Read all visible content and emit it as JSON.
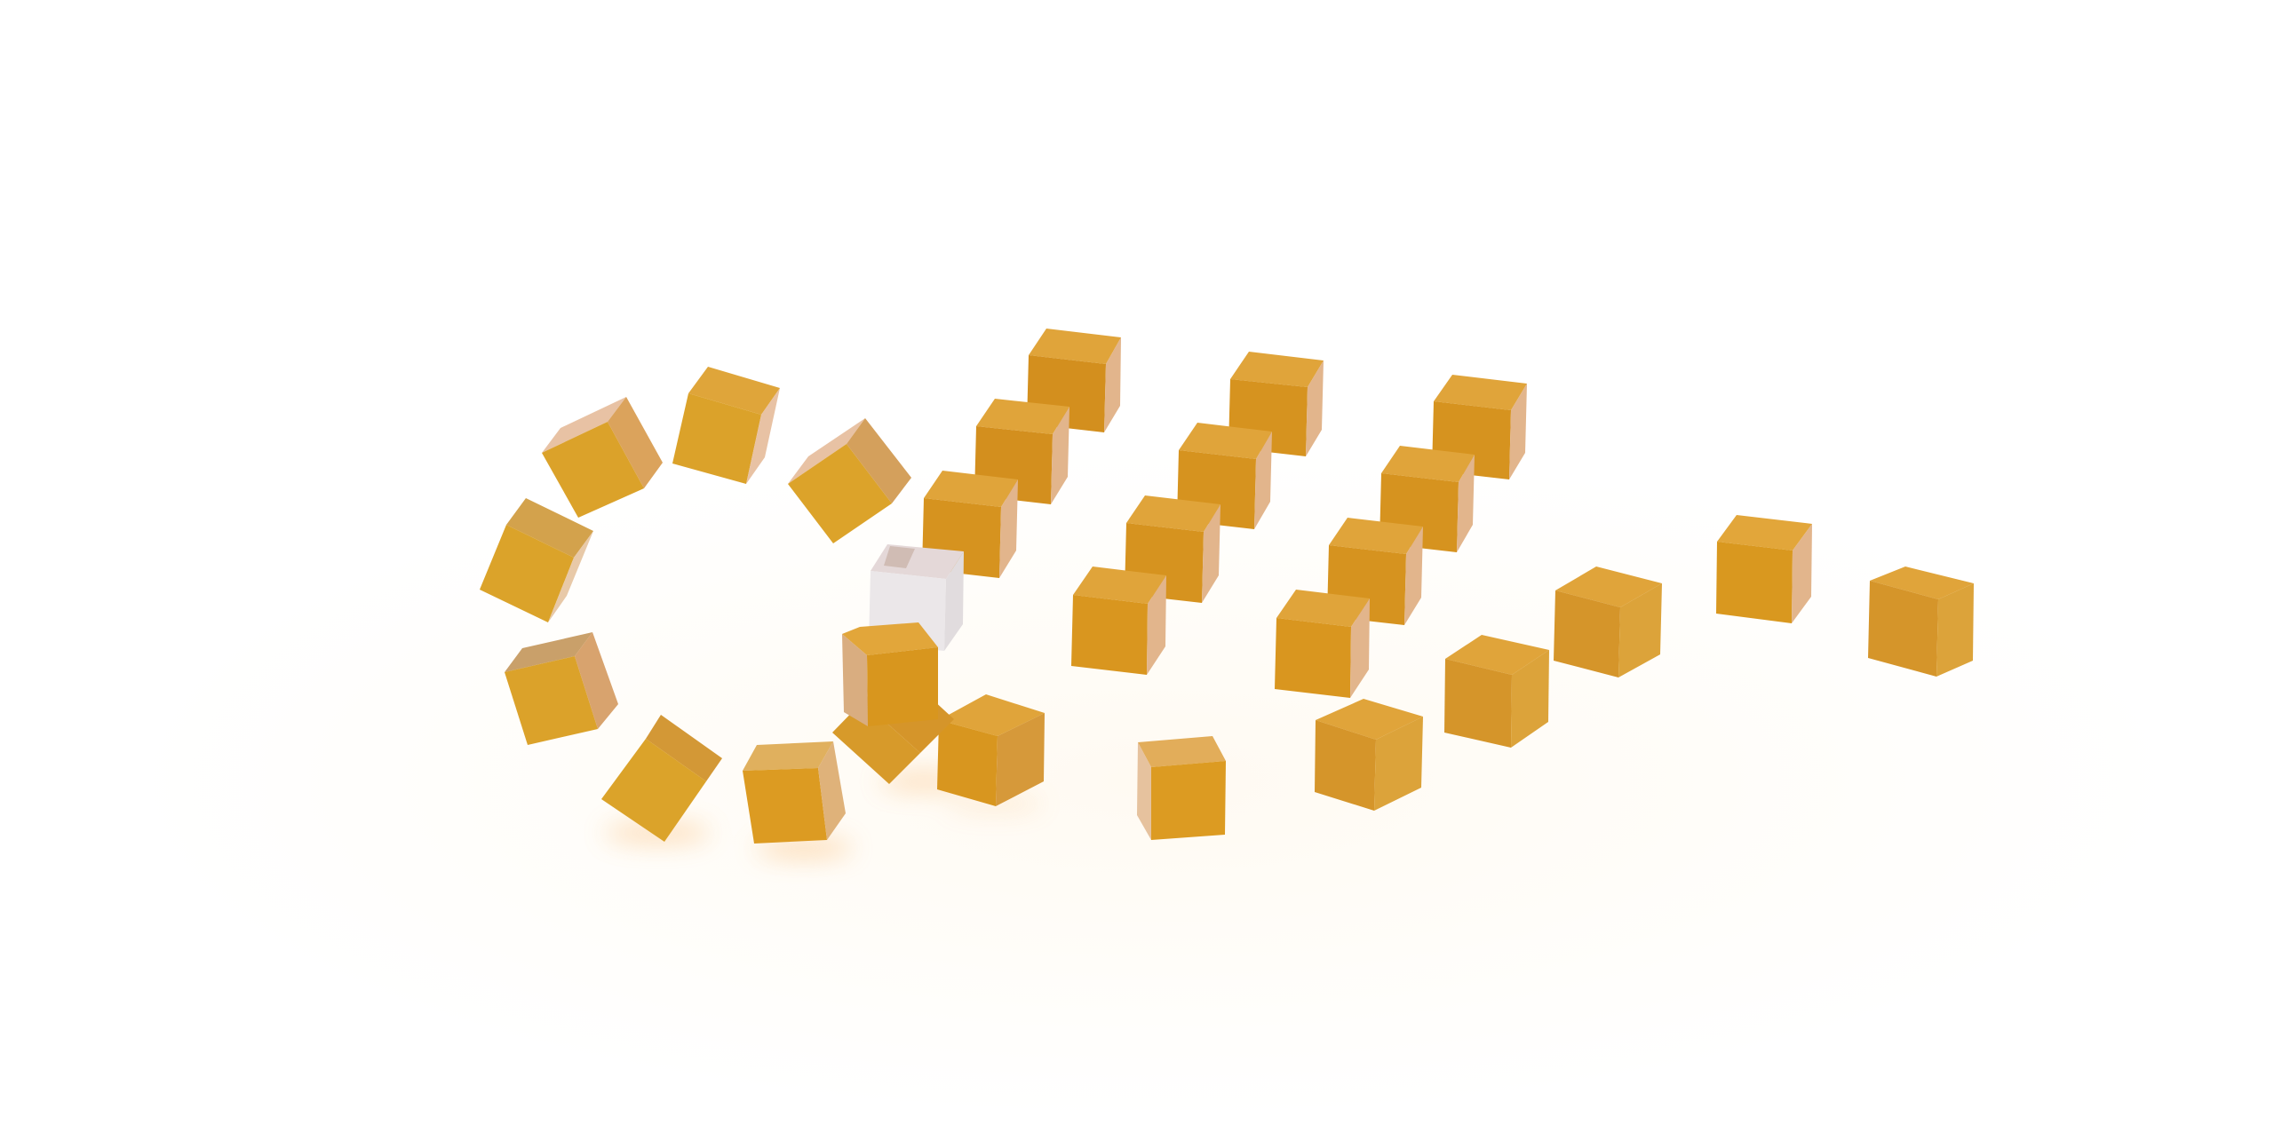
{
  "scene": {
    "subject": "cube-arrangement",
    "cube_count": 30,
    "colors": {
      "gold": "#d99a22",
      "gold_top": "#e2a63a",
      "gold_light_face": "#e6b98e",
      "gold_dark_face": "#c98a1e",
      "white_cube": "#ebe7e9",
      "shadow": "#f7b25a",
      "background": "#ffffff"
    }
  }
}
